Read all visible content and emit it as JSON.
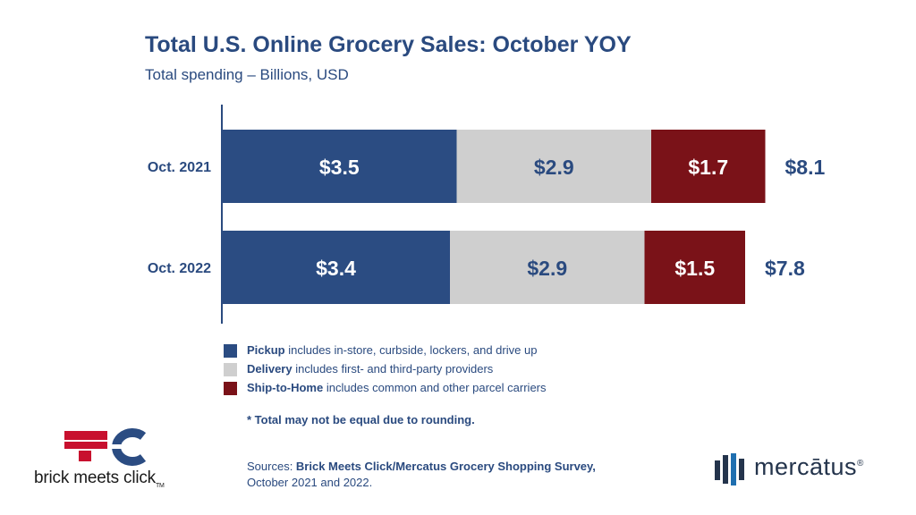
{
  "chart_data": {
    "type": "bar",
    "orientation": "horizontal",
    "stacked": true,
    "title": "Total U.S. Online Grocery Sales: October YOY",
    "subtitle": "Total spending – Billions, USD",
    "categories": [
      "Oct. 2021",
      "Oct. 2022"
    ],
    "series": [
      {
        "name": "Pickup",
        "values": [
          3.5,
          3.4
        ],
        "labels": [
          "$3.5",
          "$3.4"
        ],
        "color": "#2b4c82",
        "label_color": "#ffffff"
      },
      {
        "name": "Delivery",
        "values": [
          2.9,
          2.9
        ],
        "labels": [
          "$2.9",
          "$2.9"
        ],
        "color": "#cfcfcf",
        "label_color": "#2a4a7f"
      },
      {
        "name": "Ship-to-Home",
        "values": [
          1.7,
          1.5
        ],
        "labels": [
          "$1.7",
          "$1.5"
        ],
        "color": "#7a1218",
        "label_color": "#ffffff"
      }
    ],
    "totals": [
      "$8.1",
      "$7.8"
    ],
    "legend_position": "bottom",
    "grid": false
  },
  "legend": [
    {
      "term": "Pickup",
      "desc": " includes in-store, curbside, lockers, and drive up",
      "color": "#2b4c82"
    },
    {
      "term": "Delivery",
      "desc": " includes first- and third-party providers",
      "color": "#cfcfcf"
    },
    {
      "term": "Ship-to-Home",
      "desc": " includes common and other parcel carriers",
      "color": "#7a1218"
    }
  ],
  "note": "* Total may not be equal due to rounding.",
  "sources": {
    "prefix": "Sources: ",
    "name": "Brick Meets Click/Mercatus Grocery Shopping Survey,",
    "line2": "October 2021 and 2022."
  },
  "logos": {
    "brick_meets_click": "brick meets click",
    "brick_meets_click_tm": "TM",
    "mercatus": "mercātus",
    "mercatus_reg": "®"
  }
}
